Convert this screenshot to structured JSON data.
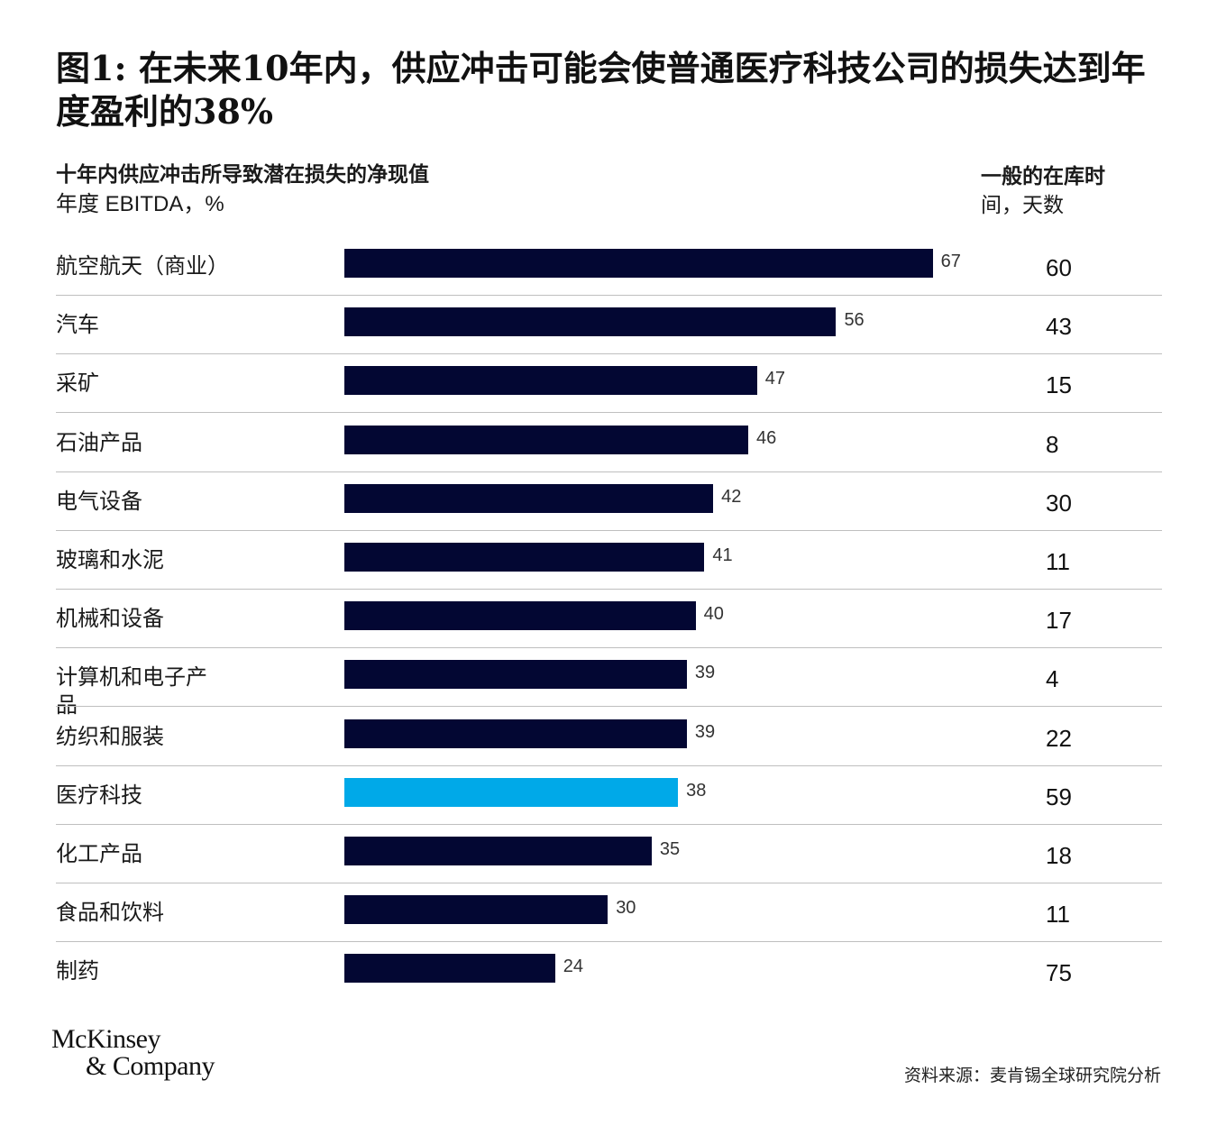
{
  "title": "图1: 在未来10年内，供应冲击可能会使普通医疗科技公司的损失达到年度盈利的38%",
  "header_left": {
    "line1": "十年内供应冲击所导致潜在损失的净现值",
    "line2": "年度 EBITDA，%"
  },
  "header_right": {
    "line1": "一般的在库时",
    "line2": "间，天数"
  },
  "colors": {
    "bar": "#030733",
    "highlight": "#00a9e8",
    "separator": "#bfbfbf"
  },
  "chart_data": {
    "type": "bar",
    "orientation": "horizontal",
    "title": "图1: 在未来10年内，供应冲击可能会使普通医疗科技公司的损失达到年度盈利的38%",
    "categories": [
      "航空航天（商业）",
      "汽车",
      "采矿",
      "石油产品",
      "电气设备",
      "玻璃和水泥",
      "机械和设备",
      "计算机和电子产品",
      "纺织和服装",
      "医疗科技",
      "化工产品",
      "食品和饮料",
      "制药"
    ],
    "series": [
      {
        "name": "十年内供应冲击所导致潜在损失的净现值",
        "values": [
          67,
          56,
          47,
          46,
          42,
          41,
          40,
          39,
          39,
          38,
          35,
          30,
          24
        ]
      },
      {
        "name": "一般的在库时间，天数",
        "values": [
          60,
          43,
          15,
          8,
          30,
          11,
          17,
          4,
          22,
          59,
          18,
          11,
          75
        ]
      }
    ],
    "highlight_category": "医疗科技",
    "grid": false,
    "legend": "none"
  },
  "logo": {
    "line1": "McKinsey",
    "line2": "& Company"
  },
  "source": "资料来源：麦肯锡全球研究院分析"
}
